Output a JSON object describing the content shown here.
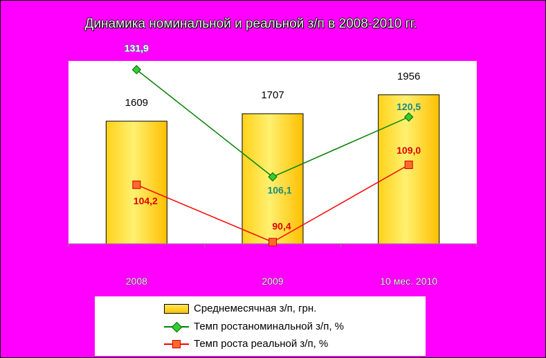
{
  "title": "Динамика номинальной и реальной з/п в 2008-2010 гг.",
  "colors": {
    "background": "#ff00ff",
    "bar": "#ffc400",
    "nominal": "#008000",
    "real": "#ff0000"
  },
  "chart_data": {
    "type": "bar",
    "categories": [
      "2008",
      "2009",
      "10 мес. 2010"
    ],
    "series": [
      {
        "name": "Среднемесячная з/п, грн.",
        "type": "bar",
        "values": [
          1609,
          1707,
          1956
        ],
        "labels": [
          "1609",
          "1707",
          "1956"
        ]
      },
      {
        "name": "Темп ростаноминальной з/п, %",
        "type": "line",
        "values": [
          131.9,
          106.1,
          120.5
        ],
        "labels": [
          "131,9",
          "106,1",
          "120,5"
        ]
      },
      {
        "name": "Темп роста реальной з/п, %",
        "type": "line",
        "values": [
          104.2,
          90.4,
          109.0
        ],
        "labels": [
          "104,2",
          "90,4",
          "109,0"
        ]
      }
    ],
    "xlabel": "",
    "ylabel": "",
    "bar_ylim": [
      0,
      2400
    ],
    "line_ylim": [
      90,
      134
    ],
    "grid": false,
    "legend": "bottom"
  }
}
